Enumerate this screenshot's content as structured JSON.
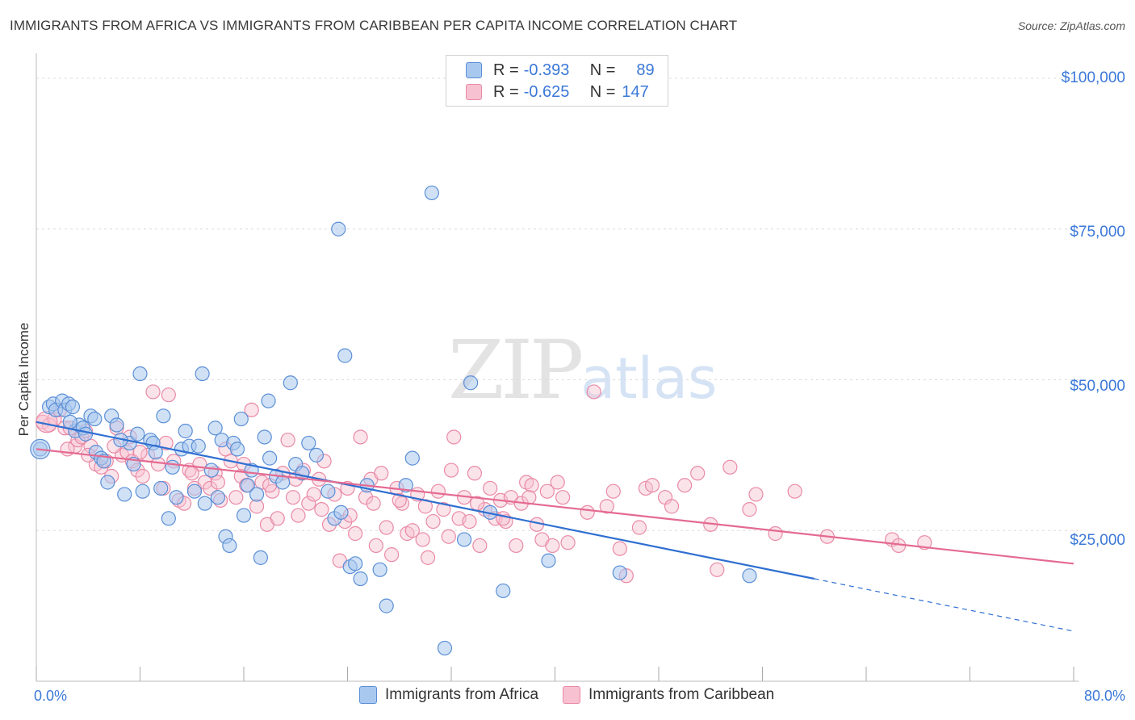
{
  "header": {
    "title": "IMMIGRANTS FROM AFRICA VS IMMIGRANTS FROM CARIBBEAN PER CAPITA INCOME CORRELATION CHART",
    "source": "Source: ZipAtlas.com"
  },
  "watermark": {
    "zip": "ZIP",
    "atlas": "atlas"
  },
  "legend": {
    "rows": [
      {
        "r_label": "R =",
        "r_value": "-0.393",
        "n_label": "N =",
        "n_value": "89"
      },
      {
        "r_label": "R =",
        "r_value": "-0.625",
        "n_label": "N =",
        "n_value": "147"
      }
    ]
  },
  "axes": {
    "x_min_label": "0.0%",
    "x_max_label": "80.0%",
    "y_label": "Per Capita Income",
    "y_ticks": [
      "$100,000",
      "$75,000",
      "$50,000",
      "$25,000"
    ]
  },
  "colors": {
    "africa_fill": "#a9c8ef",
    "africa_stroke": "#5b8fd6",
    "africa_line": "#2f6fd1",
    "caribbean_fill": "#f7c1d1",
    "caribbean_stroke": "#e98aa6",
    "caribbean_line": "#e46a91",
    "tick_text": "#3b78d8"
  },
  "chart_data": {
    "type": "scatter",
    "title": "IMMIGRANTS FROM AFRICA VS IMMIGRANTS FROM CARIBBEAN PER CAPITA INCOME CORRELATION CHART",
    "xlabel": "",
    "ylabel": "Per Capita Income",
    "xlim": [
      0,
      80
    ],
    "ylim": [
      0,
      103000
    ],
    "y_ticks": [
      25000,
      50000,
      75000,
      100000
    ],
    "grid": true,
    "legend_position": "top-center",
    "series": [
      {
        "name": "Immigrants from Africa",
        "r": -0.393,
        "n": 89,
        "trend": {
          "x0": 0,
          "y0": 43000,
          "x1": 60,
          "y1": 17000,
          "dash_to_x": 80,
          "dash_to_y": 8300
        },
        "points": [
          [
            0.3,
            38500
          ],
          [
            1.0,
            45500
          ],
          [
            1.3,
            46000
          ],
          [
            1.5,
            45000
          ],
          [
            2.0,
            46500
          ],
          [
            2.2,
            45000
          ],
          [
            2.5,
            46000
          ],
          [
            2.8,
            45500
          ],
          [
            3.0,
            41500
          ],
          [
            3.3,
            42500
          ],
          [
            3.6,
            42000
          ],
          [
            4.2,
            44000
          ],
          [
            4.6,
            38000
          ],
          [
            5.0,
            37000
          ],
          [
            5.5,
            33000
          ],
          [
            5.8,
            44000
          ],
          [
            6.2,
            42500
          ],
          [
            6.8,
            31000
          ],
          [
            7.2,
            39500
          ],
          [
            7.5,
            36000
          ],
          [
            8.0,
            51000
          ],
          [
            8.2,
            31500
          ],
          [
            8.8,
            40000
          ],
          [
            9.0,
            39500
          ],
          [
            9.6,
            32000
          ],
          [
            9.8,
            44000
          ],
          [
            10.2,
            27000
          ],
          [
            10.5,
            35500
          ],
          [
            10.8,
            30500
          ],
          [
            11.2,
            38500
          ],
          [
            11.5,
            41500
          ],
          [
            11.8,
            39000
          ],
          [
            12.2,
            31500
          ],
          [
            12.5,
            39000
          ],
          [
            12.8,
            51000
          ],
          [
            13.0,
            29500
          ],
          [
            13.5,
            35000
          ],
          [
            13.8,
            42000
          ],
          [
            14.0,
            30500
          ],
          [
            14.3,
            40000
          ],
          [
            14.6,
            24000
          ],
          [
            14.9,
            22500
          ],
          [
            15.2,
            39500
          ],
          [
            15.5,
            38500
          ],
          [
            15.8,
            43500
          ],
          [
            16.0,
            27500
          ],
          [
            16.3,
            32500
          ],
          [
            16.6,
            35000
          ],
          [
            17.0,
            31000
          ],
          [
            17.3,
            20500
          ],
          [
            17.6,
            40500
          ],
          [
            17.9,
            46500
          ],
          [
            18.0,
            37000
          ],
          [
            18.5,
            34000
          ],
          [
            19.0,
            33000
          ],
          [
            19.6,
            49500
          ],
          [
            20.0,
            36000
          ],
          [
            20.5,
            34500
          ],
          [
            21.0,
            39500
          ],
          [
            21.6,
            37500
          ],
          [
            22.5,
            31500
          ],
          [
            23.0,
            27000
          ],
          [
            23.3,
            75000
          ],
          [
            23.5,
            28000
          ],
          [
            23.8,
            54000
          ],
          [
            24.2,
            19000
          ],
          [
            24.6,
            19500
          ],
          [
            25.0,
            17000
          ],
          [
            25.5,
            32500
          ],
          [
            26.5,
            18500
          ],
          [
            27.0,
            12500
          ],
          [
            28.5,
            32500
          ],
          [
            29.0,
            37000
          ],
          [
            30.5,
            81000
          ],
          [
            31.5,
            5500
          ],
          [
            33.0,
            23500
          ],
          [
            33.5,
            49500
          ],
          [
            35.0,
            28000
          ],
          [
            36.0,
            15000
          ],
          [
            39.5,
            20000
          ],
          [
            45.0,
            18000
          ],
          [
            55.0,
            17500
          ],
          [
            4.5,
            43500
          ],
          [
            6.5,
            40000
          ],
          [
            2.6,
            43000
          ],
          [
            3.8,
            41000
          ],
          [
            5.2,
            36500
          ],
          [
            7.8,
            41000
          ],
          [
            9.2,
            38000
          ]
        ]
      },
      {
        "name": "Immigrants from Caribbean",
        "r": -0.625,
        "n": 147,
        "trend": {
          "x0": 0,
          "y0": 38500,
          "x1": 80,
          "y1": 19500
        },
        "points": [
          [
            0.5,
            43000
          ],
          [
            1.0,
            42500
          ],
          [
            1.4,
            43500
          ],
          [
            1.8,
            45000
          ],
          [
            2.2,
            42000
          ],
          [
            2.6,
            42000
          ],
          [
            3.0,
            39000
          ],
          [
            3.2,
            40000
          ],
          [
            3.5,
            40500
          ],
          [
            3.8,
            41500
          ],
          [
            4.2,
            39000
          ],
          [
            4.6,
            36000
          ],
          [
            5.0,
            35500
          ],
          [
            5.4,
            36500
          ],
          [
            5.8,
            34000
          ],
          [
            6.2,
            42000
          ],
          [
            6.6,
            37500
          ],
          [
            7.0,
            38000
          ],
          [
            7.4,
            36500
          ],
          [
            7.8,
            35000
          ],
          [
            8.2,
            34000
          ],
          [
            8.6,
            37500
          ],
          [
            9.0,
            48000
          ],
          [
            9.4,
            36000
          ],
          [
            9.8,
            32000
          ],
          [
            10.2,
            47500
          ],
          [
            10.6,
            36500
          ],
          [
            11.0,
            30000
          ],
          [
            11.4,
            29500
          ],
          [
            11.8,
            35000
          ],
          [
            12.2,
            32000
          ],
          [
            12.6,
            36000
          ],
          [
            13.0,
            33000
          ],
          [
            13.4,
            32000
          ],
          [
            13.8,
            34500
          ],
          [
            14.2,
            30000
          ],
          [
            14.6,
            38500
          ],
          [
            15.0,
            36500
          ],
          [
            15.4,
            30500
          ],
          [
            15.8,
            34000
          ],
          [
            16.2,
            32500
          ],
          [
            16.6,
            45000
          ],
          [
            17.0,
            29000
          ],
          [
            17.4,
            33000
          ],
          [
            17.8,
            26000
          ],
          [
            18.2,
            31500
          ],
          [
            18.6,
            27000
          ],
          [
            19.0,
            34500
          ],
          [
            19.4,
            40000
          ],
          [
            19.8,
            30500
          ],
          [
            20.2,
            27500
          ],
          [
            20.6,
            35000
          ],
          [
            21.0,
            29500
          ],
          [
            21.4,
            31000
          ],
          [
            21.8,
            33500
          ],
          [
            22.2,
            36500
          ],
          [
            22.6,
            26000
          ],
          [
            23.0,
            31000
          ],
          [
            23.4,
            20000
          ],
          [
            23.8,
            26500
          ],
          [
            24.2,
            27500
          ],
          [
            24.6,
            24500
          ],
          [
            25.0,
            40500
          ],
          [
            25.4,
            30500
          ],
          [
            25.8,
            33500
          ],
          [
            26.2,
            22500
          ],
          [
            26.6,
            34500
          ],
          [
            27.0,
            25500
          ],
          [
            27.4,
            21000
          ],
          [
            27.8,
            32000
          ],
          [
            28.2,
            29500
          ],
          [
            28.6,
            24500
          ],
          [
            29.0,
            25000
          ],
          [
            29.4,
            31000
          ],
          [
            29.8,
            23500
          ],
          [
            30.2,
            20500
          ],
          [
            30.6,
            26500
          ],
          [
            31.0,
            31500
          ],
          [
            31.4,
            28500
          ],
          [
            31.8,
            24000
          ],
          [
            32.2,
            40500
          ],
          [
            32.6,
            27000
          ],
          [
            33.0,
            30500
          ],
          [
            33.4,
            26500
          ],
          [
            33.8,
            34500
          ],
          [
            34.2,
            22500
          ],
          [
            34.6,
            28500
          ],
          [
            35.0,
            32000
          ],
          [
            35.4,
            27000
          ],
          [
            35.8,
            30000
          ],
          [
            36.2,
            26500
          ],
          [
            36.6,
            30500
          ],
          [
            37.0,
            22500
          ],
          [
            37.4,
            29500
          ],
          [
            37.8,
            33000
          ],
          [
            38.2,
            32500
          ],
          [
            38.6,
            26000
          ],
          [
            39.0,
            23500
          ],
          [
            39.4,
            31500
          ],
          [
            39.8,
            22500
          ],
          [
            40.2,
            33000
          ],
          [
            40.6,
            30500
          ],
          [
            41.0,
            23000
          ],
          [
            42.5,
            28000
          ],
          [
            43.0,
            48000
          ],
          [
            44.0,
            29000
          ],
          [
            44.5,
            31500
          ],
          [
            45.0,
            22000
          ],
          [
            45.5,
            17500
          ],
          [
            46.5,
            25500
          ],
          [
            47.0,
            32000
          ],
          [
            47.5,
            32500
          ],
          [
            48.5,
            30500
          ],
          [
            49.0,
            29000
          ],
          [
            50.0,
            32500
          ],
          [
            51.0,
            34500
          ],
          [
            52.0,
            26000
          ],
          [
            52.5,
            18500
          ],
          [
            53.5,
            35500
          ],
          [
            55.0,
            28500
          ],
          [
            55.5,
            31000
          ],
          [
            57.0,
            24500
          ],
          [
            58.5,
            31500
          ],
          [
            61.0,
            24000
          ],
          [
            66.0,
            23500
          ],
          [
            66.5,
            22500
          ],
          [
            68.5,
            23000
          ],
          [
            2.4,
            38500
          ],
          [
            4.0,
            37500
          ],
          [
            6.0,
            39000
          ],
          [
            7.2,
            40500
          ],
          [
            8.0,
            38000
          ],
          [
            10.0,
            39500
          ],
          [
            12.0,
            34500
          ],
          [
            14.0,
            33000
          ],
          [
            16.0,
            36000
          ],
          [
            18.0,
            32500
          ],
          [
            20.0,
            33500
          ],
          [
            22.0,
            28500
          ],
          [
            24.0,
            32000
          ],
          [
            26.0,
            29500
          ],
          [
            28.0,
            30000
          ],
          [
            30.0,
            29000
          ],
          [
            32.0,
            35000
          ],
          [
            34.0,
            29500
          ],
          [
            36.0,
            27000
          ],
          [
            38.0,
            30500
          ]
        ]
      }
    ]
  }
}
